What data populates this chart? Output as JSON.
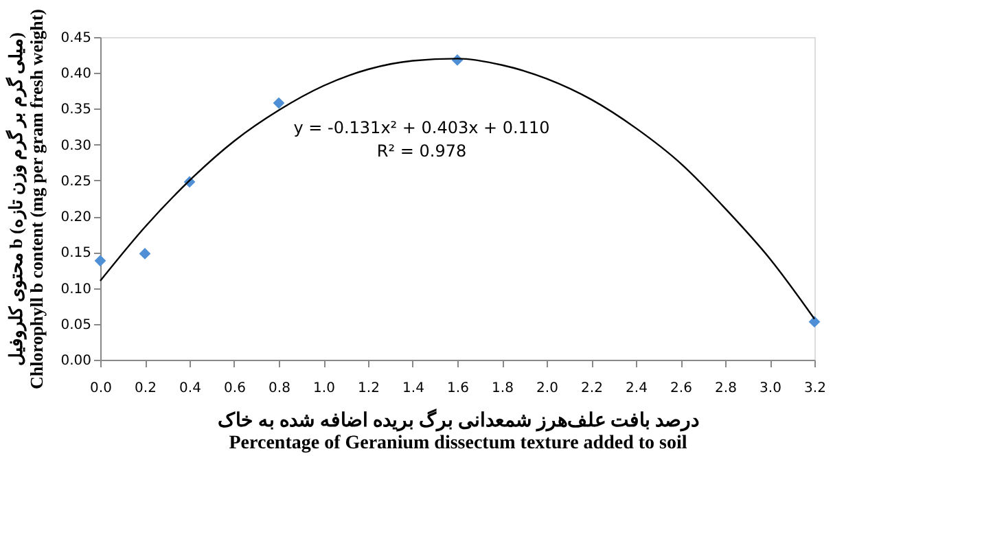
{
  "chart_data": {
    "type": "scatter",
    "xlabel": "درصد بافت علف‌هرز شمعدانی برگ بریده اضافه شده به خاک\nPercentage of Geranium dissectum texture added to soil",
    "ylabel": "محتوی کلروفیل b (میلی گرم بر گرم وزن تازه)\nChlorophyll b content (mg per gram fresh weight)",
    "series": [
      {
        "color": "#4f8fd6",
        "marker": "diamond",
        "x": [
          0.0,
          0.2,
          0.4,
          0.8,
          1.6,
          3.2
        ],
        "values": [
          0.138,
          0.148,
          0.248,
          0.358,
          0.418,
          0.053
        ]
      },
      {
        "type": "line",
        "color": "#000000",
        "line_style": "solid",
        "x": [
          0.0,
          0.2,
          0.4,
          0.6,
          0.8,
          1.0,
          1.2,
          1.4,
          1.6,
          1.8,
          2.0,
          2.2,
          2.4,
          2.6,
          2.8,
          3.0,
          3.2
        ],
        "values": [
          0.11,
          0.185,
          0.25,
          0.305,
          0.348,
          0.382,
          0.405,
          0.417,
          0.42,
          0.411,
          0.392,
          0.363,
          0.323,
          0.274,
          0.211,
          0.141,
          0.057
        ]
      }
    ],
    "annotations": [
      "y = -0.131x² + 0.403x + 0.110",
      "R² = 0.978"
    ],
    "xlim": [
      0,
      3.2
    ],
    "xticks": [
      {
        "value": 0,
        "label": "0.0"
      },
      0.2,
      0.4,
      0.6,
      0.8,
      {
        "value": 1,
        "label": "1.0"
      },
      1.2,
      1.4,
      1.6,
      1.8,
      {
        "value": 2,
        "label": "2.0"
      },
      2.2,
      2.4,
      2.6,
      2.8,
      {
        "value": 3,
        "label": "3.0"
      },
      3.2
    ],
    "ylim": [
      0,
      0.45
    ],
    "yticks": [
      {
        "value": 0,
        "label": "0.00"
      },
      0.05,
      {
        "value": 0.1,
        "label": "0.10"
      },
      0.15,
      {
        "value": 0.2,
        "label": "0.20"
      },
      0.25,
      {
        "value": 0.3,
        "label": "0.30"
      },
      0.35,
      {
        "value": 0.4,
        "label": "0.40"
      },
      0.45
    ],
    "grid": false
  }
}
